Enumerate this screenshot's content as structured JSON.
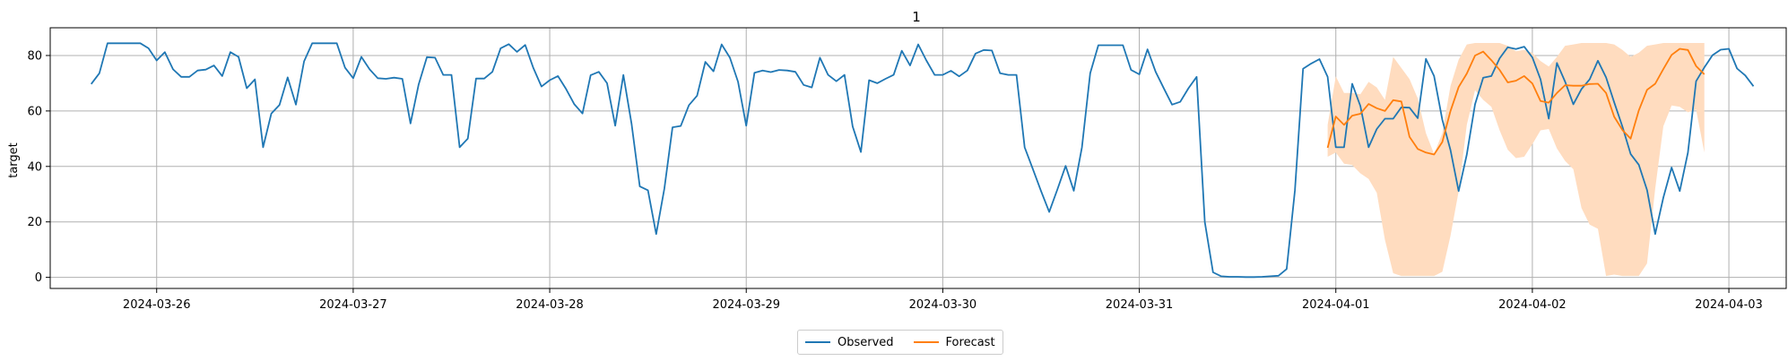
{
  "chart_data": {
    "type": "line",
    "title": "1",
    "ylabel": "target",
    "xlabel": "",
    "ylim": [
      -4,
      90
    ],
    "xlim": [
      "2024-03-25T11:00",
      "2024-04-03T07:00"
    ],
    "grid": true,
    "legend_position": "bottom-center",
    "yticks": [
      0,
      20,
      40,
      60,
      80
    ],
    "xticks": [
      "2024-03-26",
      "2024-03-27",
      "2024-03-28",
      "2024-03-29",
      "2024-03-30",
      "2024-03-31",
      "2024-04-01",
      "2024-04-02",
      "2024-04-03"
    ],
    "colors": {
      "observed": "#1f77b4",
      "forecast": "#ff7f0e",
      "band": "#ffdcbf"
    },
    "observed": {
      "name": "Observed",
      "start": "2024-03-25T16:00",
      "step_hours": 1,
      "values": [
        69.7,
        73.6,
        84.4,
        84.4,
        84.4,
        84.4,
        84.4,
        82.6,
        78.2,
        81.2,
        75.0,
        72.3,
        72.3,
        74.6,
        74.9,
        76.4,
        72.6,
        81.2,
        79.5,
        68.2,
        71.4,
        46.9,
        59.1,
        62.2,
        72.1,
        62.3,
        77.9,
        84.4,
        84.4,
        84.4,
        84.4,
        75.6,
        71.8,
        79.5,
        75.0,
        71.8,
        71.6,
        72.0,
        71.6,
        55.5,
        69.6,
        79.4,
        79.2,
        73.0,
        73.0,
        46.9,
        50.0,
        71.7,
        71.7,
        74.1,
        82.6,
        84.1,
        81.3,
        83.8,
        75.5,
        68.8,
        71.1,
        72.6,
        67.9,
        62.4,
        59.1,
        72.9,
        74.1,
        70.0,
        54.7,
        73.0,
        55.2,
        32.8,
        31.4,
        15.6,
        32.0,
        54.1,
        54.6,
        62.1,
        65.5,
        77.7,
        74.3,
        84.0,
        79.2,
        70.5,
        54.7,
        73.8,
        74.6,
        74.0,
        74.8,
        74.6,
        74.1,
        69.4,
        68.5,
        79.2,
        73.0,
        70.7,
        73.0,
        54.4,
        45.2,
        71.1,
        70.0,
        71.6,
        73.0,
        81.7,
        76.4,
        84.0,
        78.2,
        73.0,
        73.0,
        74.5,
        72.5,
        74.6,
        80.7,
        82.0,
        81.8,
        73.6,
        73.0,
        73.0,
        46.9,
        39.1,
        31.1,
        23.6,
        31.7,
        40.2,
        31.2,
        46.9,
        73.6,
        83.7,
        83.7,
        83.7,
        83.7,
        74.8,
        73.2,
        82.2,
        74.1,
        68.1,
        62.3,
        63.3,
        68.2,
        72.3,
        20.0,
        1.8,
        0.4,
        0.2,
        0.2,
        0.1,
        0.1,
        0.2,
        0.4,
        0.6,
        3.0,
        31.3,
        75.2,
        77.1,
        78.7,
        72.3,
        46.9,
        46.9,
        69.8,
        61.8,
        46.9,
        53.5,
        57.2,
        57.2,
        61.3,
        61.2,
        57.4,
        78.8,
        72.6,
        56.8,
        45.9,
        31.1,
        44.3,
        62.4,
        72.0,
        72.6,
        79.0,
        83.0,
        82.3,
        83.2,
        79.3,
        71.4,
        57.2,
        77.3,
        70.6,
        62.4,
        67.9,
        71.4,
        78.1,
        72.1,
        63.1,
        54.3,
        44.5,
        40.6,
        31.5,
        15.6,
        28.8,
        39.6,
        31.1,
        45.0,
        70.7,
        75.7,
        80.1,
        82.1,
        82.4,
        75.3,
        72.8,
        68.9
      ]
    },
    "forecast": {
      "name": "Forecast",
      "start": "2024-03-31T23:00",
      "step_hours": 1,
      "values": [
        46.7,
        58.0,
        55.0,
        58.3,
        59.0,
        62.5,
        61.0,
        60.0,
        63.9,
        63.4,
        50.7,
        46.3,
        45.0,
        44.3,
        48.8,
        60.0,
        68.6,
        73.5,
        80.0,
        81.4,
        78.3,
        74.8,
        70.3,
        70.9,
        72.6,
        69.9,
        63.6,
        63.0,
        66.5,
        69.3,
        69.1,
        69.1,
        69.7,
        69.8,
        66.5,
        57.9,
        53.1,
        50.0,
        60.2,
        67.6,
        69.8,
        75.1,
        80.2,
        82.4,
        82.0,
        76.2,
        73.2
      ],
      "upper": [
        55.0,
        72.5,
        66.5,
        66.5,
        66.0,
        70.5,
        68.5,
        64.0,
        79.5,
        75.5,
        71.5,
        64.5,
        52.0,
        44.5,
        52.0,
        69.0,
        78.5,
        84.0,
        84.5,
        84.5,
        84.5,
        84.5,
        83.5,
        81.5,
        82.0,
        81.0,
        78.0,
        76.0,
        79.5,
        83.5,
        84.0,
        84.5,
        84.5,
        84.5,
        84.5,
        84.0,
        82.0,
        79.5,
        81.0,
        83.5,
        84.0,
        84.5,
        84.5,
        84.5,
        84.5,
        84.5,
        84.5
      ],
      "lower": [
        43.5,
        45.0,
        41.0,
        40.5,
        37.5,
        35.5,
        30.5,
        13.5,
        1.5,
        0.5,
        0.5,
        0.5,
        0.5,
        0.5,
        2.0,
        15.0,
        31.0,
        55.0,
        67.5,
        64.0,
        61.5,
        53.0,
        46.0,
        43.0,
        43.5,
        48.0,
        53.0,
        53.5,
        46.5,
        42.0,
        39.0,
        25.0,
        19.0,
        17.5,
        0.5,
        1.0,
        0.5,
        0.5,
        0.5,
        5.0,
        32.0,
        54.5,
        62.0,
        61.5,
        59.5,
        60.5,
        45.0
      ]
    }
  },
  "legend": {
    "observed_label": "Observed",
    "forecast_label": "Forecast"
  }
}
